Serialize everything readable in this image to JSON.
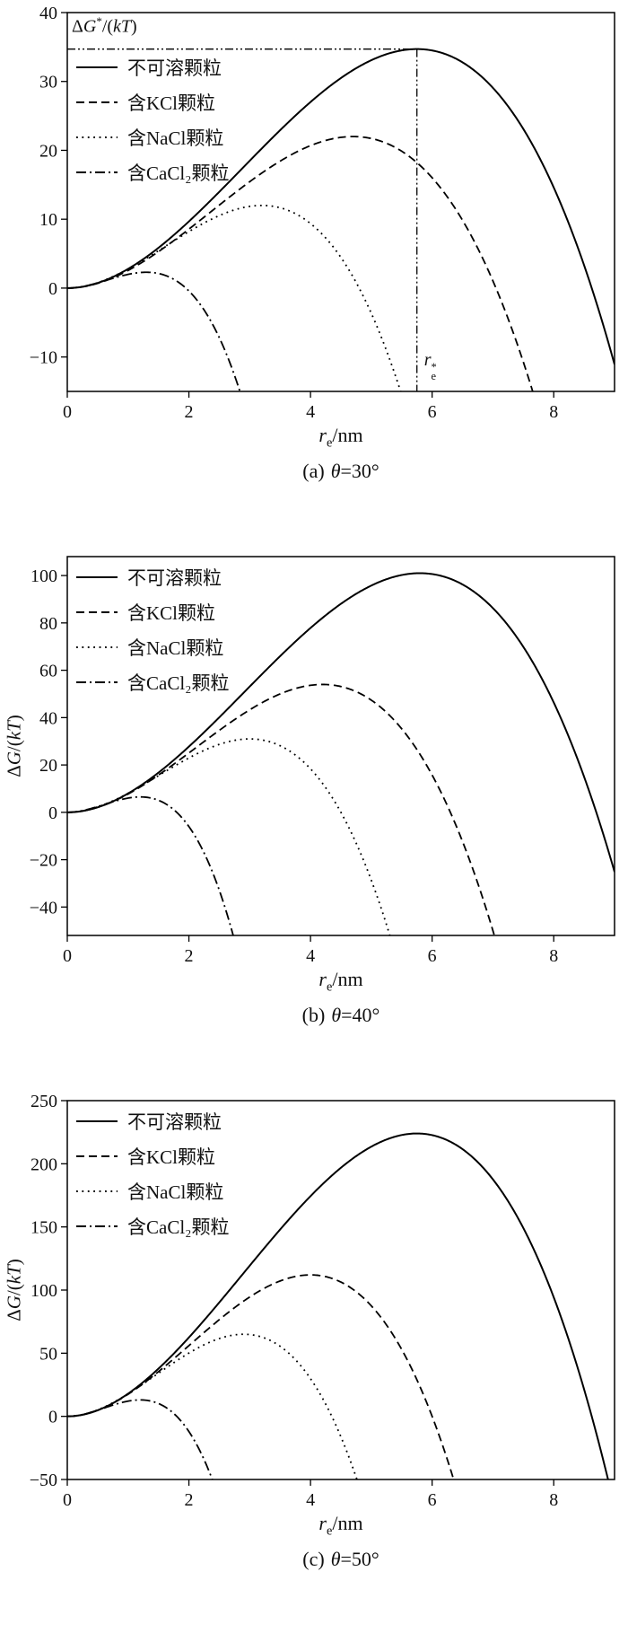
{
  "styles": {
    "line_color": "#000000",
    "background": "#ffffff",
    "dash_patterns": {
      "solid": "none",
      "dashed": "9,5",
      "dotted": "1.8,4.6",
      "dashdot": "11,4,2,4",
      "dashdotdot": "9,3,2,3,2,3"
    }
  },
  "chart_data": [
    {
      "type": "line",
      "caption": {
        "index": "(a)",
        "symbol": "θ",
        "value": "=30°"
      },
      "xlabel": {
        "base": "r",
        "sub": "e",
        "rest": "/nm"
      },
      "ylabel": null,
      "xlim": [
        0,
        9
      ],
      "ylim": [
        -15,
        40
      ],
      "xticks": [
        0,
        2,
        4,
        6,
        8
      ],
      "yticks": [
        -10,
        0,
        10,
        20,
        30,
        40
      ],
      "grid": false,
      "legend_position": "top-left",
      "model": "ΔG(r) = ΔG_peak·(3t² − 2t³), t = r/r_peak",
      "annotation": {
        "label": {
          "pre": "Δ",
          "var1": "G",
          "sup": "*",
          "mid": "/(",
          "var2": "kT",
          "post": ")"
        },
        "x_star": 5.75,
        "y_star": 34.7,
        "r_label": {
          "base": "r",
          "sup": "*",
          "sub": "e"
        }
      },
      "series": [
        {
          "key": "insoluble",
          "name": "不可溶颗粒",
          "dash": "solid",
          "peak_x": 5.75,
          "peak_y": 34.7,
          "zero_crossing_x": 8.63,
          "points": [
            [
              0,
              0
            ],
            [
              0.5,
              0.7
            ],
            [
              1,
              2.8
            ],
            [
              1.5,
              5.9
            ],
            [
              2,
              9.7
            ],
            [
              2.5,
              14.0
            ],
            [
              3,
              18.5
            ],
            [
              3.5,
              22.9
            ],
            [
              4,
              27.0
            ],
            [
              4.5,
              30.5
            ],
            [
              5,
              33.1
            ],
            [
              5.5,
              34.5
            ],
            [
              5.75,
              34.7
            ],
            [
              6,
              34.5
            ],
            [
              6.5,
              32.8
            ],
            [
              7,
              29.1
            ],
            [
              7.5,
              23.1
            ],
            [
              8,
              14.6
            ],
            [
              8.5,
              3.3
            ],
            [
              9,
              -11.1
            ]
          ]
        },
        {
          "key": "kcl",
          "name": "含KCl颗粒",
          "dash": "dashed",
          "peak_x": 4.7,
          "peak_y": 22,
          "zero_crossing_x": 7.05,
          "points": [
            [
              0,
              0
            ],
            [
              1,
              2.6
            ],
            [
              2,
              8.6
            ],
            [
              3,
              15.4
            ],
            [
              4,
              20.7
            ],
            [
              4.7,
              22
            ],
            [
              5,
              21.7
            ],
            [
              6,
              16.0
            ],
            [
              7,
              1.0
            ],
            [
              7.5,
              -10.7
            ],
            [
              7.8,
              -19.3
            ]
          ]
        },
        {
          "key": "nacl",
          "name": "含NaCl颗粒",
          "dash": "dotted",
          "peak_x": 3.2,
          "peak_y": 12,
          "zero_crossing_x": 4.8,
          "points": [
            [
              0,
              0
            ],
            [
              1,
              2.8
            ],
            [
              2,
              8.2
            ],
            [
              3,
              11.9
            ],
            [
              3.2,
              12
            ],
            [
              4,
              9.4
            ],
            [
              4.5,
              4.5
            ],
            [
              5,
              -3.7
            ],
            [
              5.5,
              -15.5
            ]
          ]
        },
        {
          "key": "cacl2",
          "name": "含CaCl₂颗粒",
          "dash": "dashdot",
          "peak_x": 1.3,
          "peak_y": 2.3,
          "zero_crossing_x": 1.95,
          "points": [
            [
              0,
              0
            ],
            [
              0.5,
              0.8
            ],
            [
              1,
              2.0
            ],
            [
              1.3,
              2.3
            ],
            [
              1.5,
              2.1
            ],
            [
              2,
              -0.4
            ],
            [
              2.5,
              -7.2
            ],
            [
              2.8,
              -14.0
            ]
          ]
        }
      ]
    },
    {
      "type": "line",
      "caption": {
        "index": "(b)",
        "symbol": "θ",
        "value": "=40°"
      },
      "xlabel": {
        "base": "r",
        "sub": "e",
        "rest": "/nm"
      },
      "ylabel": {
        "pre": "Δ",
        "var1": "G",
        "mid": "/(",
        "var2": "kT",
        "post": ")"
      },
      "xlim": [
        0,
        9
      ],
      "ylim": [
        -52,
        108
      ],
      "xticks": [
        0,
        2,
        4,
        6,
        8
      ],
      "yticks": [
        -40,
        -20,
        0,
        20,
        40,
        60,
        80,
        100
      ],
      "grid": false,
      "legend_position": "top-left",
      "model": "ΔG(r) = ΔG_peak·(3t² − 2t³), t = r/r_peak",
      "annotation": null,
      "series": [
        {
          "key": "insoluble",
          "name": "不可溶颗粒",
          "dash": "solid",
          "peak_x": 5.8,
          "peak_y": 101,
          "zero_crossing_x": 8.7,
          "points": [
            [
              0,
              0
            ],
            [
              1,
              8.0
            ],
            [
              2,
              27.7
            ],
            [
              3,
              53.1
            ],
            [
              4,
              77.9
            ],
            [
              5,
              95.8
            ],
            [
              5.8,
              101
            ],
            [
              6,
              100.6
            ],
            [
              7,
              86.3
            ],
            [
              8,
              46.4
            ],
            [
              8.7,
              0
            ],
            [
              9,
              -25.2
            ]
          ]
        },
        {
          "key": "kcl",
          "name": "含KCl颗粒",
          "dash": "dashed",
          "peak_x": 4.2,
          "peak_y": 54,
          "zero_crossing_x": 6.3,
          "points": [
            [
              0,
              0
            ],
            [
              1,
              7.7
            ],
            [
              2,
              25.1
            ],
            [
              3,
              43.3
            ],
            [
              4,
              53.6
            ],
            [
              4.2,
              54
            ],
            [
              5,
              47.4
            ],
            [
              6,
              15.7
            ],
            [
              6.3,
              0
            ],
            [
              6.8,
              -33.8
            ],
            [
              7,
              -50
            ]
          ]
        },
        {
          "key": "nacl",
          "name": "含NaCl颗粒",
          "dash": "dotted",
          "peak_x": 3.0,
          "peak_y": 31,
          "zero_crossing_x": 4.5,
          "points": [
            [
              0,
              0
            ],
            [
              1,
              8.0
            ],
            [
              2,
              23.0
            ],
            [
              3,
              31
            ],
            [
              4,
              18.4
            ],
            [
              4.5,
              0
            ],
            [
              5,
              -28.7
            ],
            [
              5.3,
              -51.6
            ]
          ]
        },
        {
          "key": "cacl2",
          "name": "含CaCl₂颗粒",
          "dash": "dashdot",
          "peak_x": 1.2,
          "peak_y": 6.5,
          "zero_crossing_x": 1.8,
          "points": [
            [
              0,
              0
            ],
            [
              0.5,
              2.4
            ],
            [
              1,
              6.0
            ],
            [
              1.2,
              6.5
            ],
            [
              1.5,
              5.1
            ],
            [
              1.8,
              0
            ],
            [
              2,
              -6.0
            ],
            [
              2.5,
              -32.9
            ],
            [
              2.7,
              -49.4
            ]
          ]
        }
      ]
    },
    {
      "type": "line",
      "caption": {
        "index": "(c)",
        "symbol": "θ",
        "value": "=50°"
      },
      "xlabel": {
        "base": "r",
        "sub": "e",
        "rest": "/nm"
      },
      "ylabel": {
        "pre": "Δ",
        "var1": "G",
        "mid": "/(",
        "var2": "kT",
        "post": ")"
      },
      "xlim": [
        0,
        9
      ],
      "ylim": [
        -50,
        250
      ],
      "xticks": [
        0,
        2,
        4,
        6,
        8
      ],
      "yticks": [
        -50,
        0,
        50,
        100,
        150,
        200,
        250
      ],
      "grid": false,
      "legend_position": "top-left",
      "model": "ΔG(r) = ΔG_peak·(3t² − 2t³), t = r/r_peak",
      "annotation": null,
      "series": [
        {
          "key": "insoluble",
          "name": "不可溶颗粒",
          "dash": "solid",
          "peak_x": 5.75,
          "peak_y": 224,
          "zero_crossing_x": 8.63,
          "points": [
            [
              0,
              0
            ],
            [
              1,
              18.0
            ],
            [
              2,
              62.4
            ],
            [
              3,
              119.3
            ],
            [
              4,
              174.4
            ],
            [
              5,
              213.6
            ],
            [
              5.75,
              224
            ],
            [
              6,
              222.7
            ],
            [
              7,
              187.6
            ],
            [
              8,
              94.3
            ],
            [
              8.6,
              4.4
            ],
            [
              8.9,
              -51.4
            ]
          ]
        },
        {
          "key": "kcl",
          "name": "含KCl颗粒",
          "dash": "dashed",
          "peak_x": 4.0,
          "peak_y": 112,
          "zero_crossing_x": 6.0,
          "points": [
            [
              0,
              0
            ],
            [
              1,
              17.5
            ],
            [
              2,
              56
            ],
            [
              3,
              94.5
            ],
            [
              4,
              112
            ],
            [
              5,
              87.5
            ],
            [
              6,
              0
            ],
            [
              6.3,
              -41.7
            ],
            [
              6.4,
              -57.3
            ]
          ]
        },
        {
          "key": "nacl",
          "name": "含NaCl颗粒",
          "dash": "dotted",
          "peak_x": 2.9,
          "peak_y": 65,
          "zero_crossing_x": 4.35,
          "points": [
            [
              0,
              0
            ],
            [
              1,
              17.9
            ],
            [
              2,
              50.1
            ],
            [
              2.9,
              65
            ],
            [
              3.5,
              55.5
            ],
            [
              4,
              29.9
            ],
            [
              4.35,
              0
            ],
            [
              4.8,
              -55.3
            ]
          ]
        },
        {
          "key": "cacl2",
          "name": "含CaCl₂颗粒",
          "dash": "dashdot",
          "peak_x": 1.2,
          "peak_y": 13,
          "zero_crossing_x": 1.8,
          "points": [
            [
              0,
              0
            ],
            [
              0.5,
              4.9
            ],
            [
              1,
              12.0
            ],
            [
              1.2,
              13
            ],
            [
              1.5,
              10.2
            ],
            [
              1.8,
              0
            ],
            [
              2.2,
              -29.1
            ],
            [
              2.4,
              -52
            ]
          ]
        }
      ]
    }
  ]
}
